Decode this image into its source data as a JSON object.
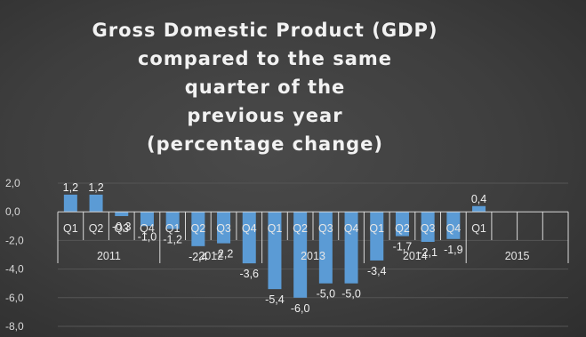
{
  "chart_data": {
    "type": "bar",
    "title": "Gross Domestic Product (GDP) compared to the same quarter of the previous year (percentage change)",
    "title_lines": [
      "Gross Domestic Product (GDP)",
      "compared to the same",
      "quarter of the",
      "previous year",
      "(percentage change)"
    ],
    "xlabel": "",
    "ylabel": "",
    "ylim": [
      -8,
      2
    ],
    "yticks": [
      2,
      0,
      -2,
      -4,
      -6,
      -8
    ],
    "ytick_labels": [
      "2,0",
      "0,0",
      "-2,0",
      "-4,0",
      "-6,0",
      "-8,0"
    ],
    "grid": true,
    "legend": "none",
    "bar_color": "#5b9bd5",
    "background_color": "#3e3e3e",
    "years": [
      {
        "label": "2011",
        "quarters": [
          "Q1",
          "Q2",
          "Q3",
          "Q4"
        ]
      },
      {
        "label": "2012",
        "quarters": [
          "Q1",
          "Q2",
          "Q3",
          "Q4"
        ]
      },
      {
        "label": "2013",
        "quarters": [
          "Q1",
          "Q2",
          "Q3",
          "Q4"
        ]
      },
      {
        "label": "2014",
        "quarters": [
          "Q1",
          "Q2",
          "Q3",
          "Q4"
        ]
      },
      {
        "label": "2015",
        "quarters": [
          "Q1",
          "",
          "",
          ""
        ]
      }
    ],
    "values": [
      1.2,
      1.2,
      -0.3,
      -1.0,
      -1.2,
      -2.4,
      -2.2,
      -3.6,
      -5.4,
      -6.0,
      -5.0,
      -5.0,
      -3.4,
      -1.7,
      -2.1,
      -1.9,
      0.4,
      null,
      null,
      null
    ],
    "data_labels": [
      "1,2",
      "1,2",
      "-0,3",
      "-1,0",
      "-1,2",
      "-2,4",
      "-2,2",
      "-3,6",
      "-5,4",
      "-6,0",
      "-5,0",
      "-5,0",
      "-3,4",
      "-1,7",
      "-2,1",
      "-1,9",
      "0,4",
      "",
      "",
      ""
    ]
  }
}
